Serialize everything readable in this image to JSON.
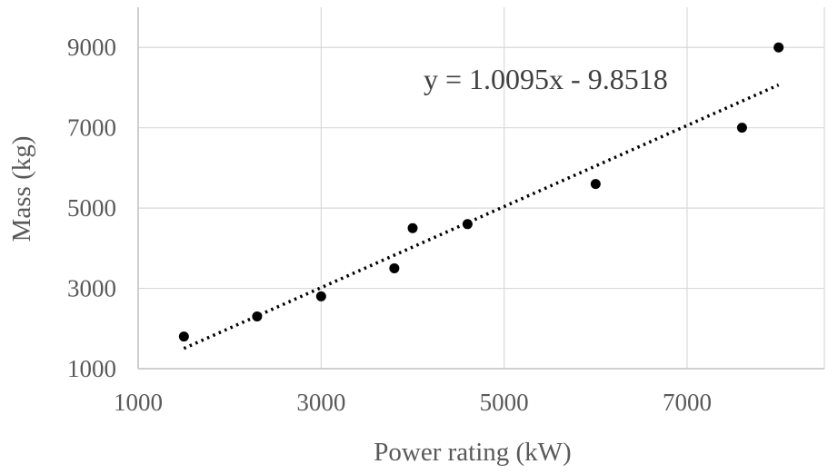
{
  "chart_data": {
    "type": "scatter",
    "xlabel": "Power rating (kW)",
    "ylabel": "Mass (kg)",
    "xlim": [
      1000,
      8500
    ],
    "ylim": [
      1000,
      10000
    ],
    "x_ticks": [
      1000,
      3000,
      5000,
      7000
    ],
    "y_ticks": [
      1000,
      3000,
      5000,
      7000,
      9000
    ],
    "grid": true,
    "points": [
      {
        "x": 1500,
        "y": 1800
      },
      {
        "x": 2300,
        "y": 2300
      },
      {
        "x": 3000,
        "y": 2800
      },
      {
        "x": 3800,
        "y": 3500
      },
      {
        "x": 4000,
        "y": 4500
      },
      {
        "x": 4600,
        "y": 4600
      },
      {
        "x": 6000,
        "y": 5600
      },
      {
        "x": 7600,
        "y": 7000
      },
      {
        "x": 8000,
        "y": 9000
      }
    ],
    "trendline": {
      "type": "linear",
      "slope": 1.0095,
      "intercept": -9.8518,
      "x_range": [
        1500,
        8000
      ],
      "style": "dotted",
      "equation": "y = 1.0095x - 9.8518"
    },
    "colors": {
      "points": "#000000",
      "grid": "#d9d9d9",
      "axis": "#bfbfbf",
      "text": "#595959"
    }
  }
}
